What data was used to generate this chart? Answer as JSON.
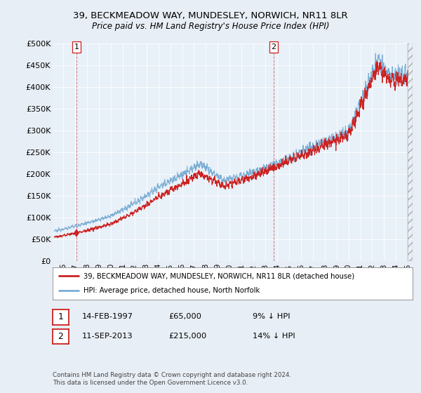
{
  "title": "39, BECKMEADOW WAY, MUNDESLEY, NORWICH, NR11 8LR",
  "subtitle": "Price paid vs. HM Land Registry's House Price Index (HPI)",
  "sale1": {
    "date_label": "14-FEB-1997",
    "price": 65000,
    "hpi_diff": "9% ↓ HPI",
    "year": 1997.12
  },
  "sale2": {
    "date_label": "11-SEP-2013",
    "price": 215000,
    "hpi_diff": "14% ↓ HPI",
    "year": 2013.7
  },
  "legend_red": "39, BECKMEADOW WAY, MUNDESLEY, NORWICH, NR11 8LR (detached house)",
  "legend_blue": "HPI: Average price, detached house, North Norfolk",
  "footnote": "Contains HM Land Registry data © Crown copyright and database right 2024.\nThis data is licensed under the Open Government Licence v3.0.",
  "ylim": [
    0,
    500000
  ],
  "xlim_start": 1995.3,
  "xlim_end": 2025.3,
  "background_color": "#e8eef5",
  "plot_bg": "#e8f0f8",
  "red_color": "#cc2222",
  "blue_color": "#7aadd4",
  "grid_color": "#ffffff",
  "title_fontsize": 9.5,
  "subtitle_fontsize": 8.5,
  "ytick_fontsize": 8,
  "xtick_fontsize": 7
}
